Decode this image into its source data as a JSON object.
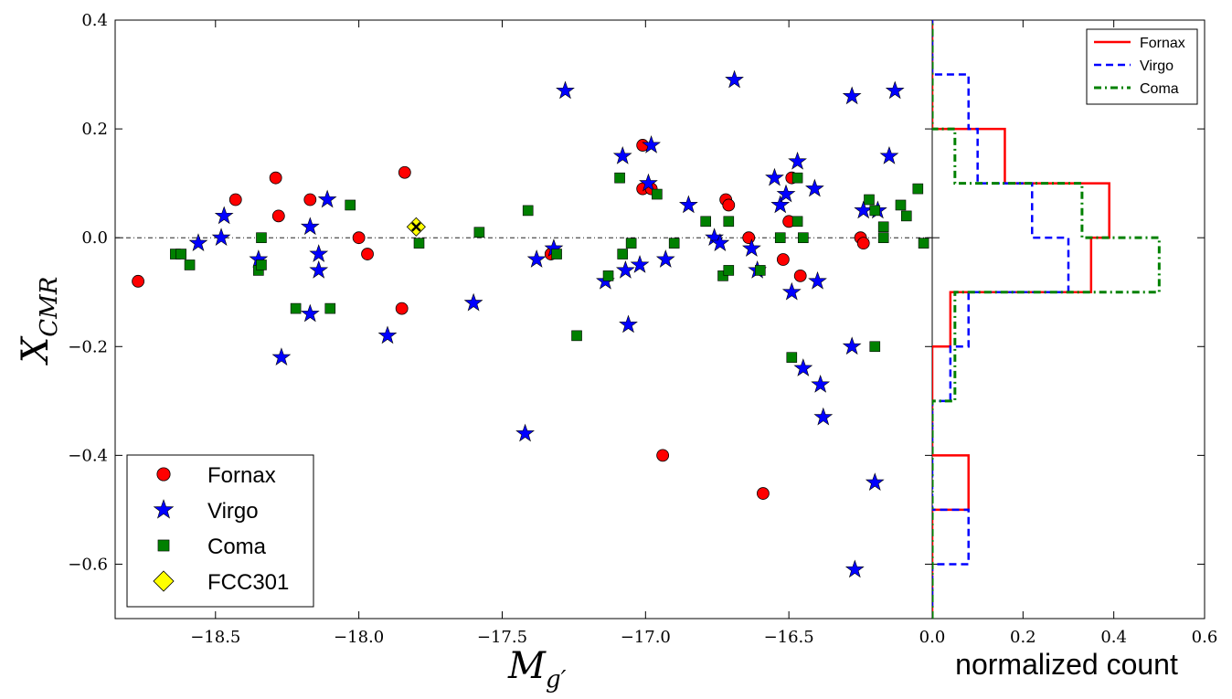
{
  "chart_data": [
    {
      "type": "scatter",
      "xlabel": "M",
      "xlabel_sub": "g′",
      "ylabel": "X",
      "ylabel_sub": "CMR",
      "xlim": [
        -18.85,
        -16.0
      ],
      "ylim": [
        -0.7,
        0.4
      ],
      "xticks": [
        -18.5,
        -18.0,
        -17.5,
        -17.0,
        -16.5
      ],
      "xtick_labels": [
        "−18.5",
        "−18.0",
        "−17.5",
        "−17.0",
        "−16.5"
      ],
      "yticks": [
        0.4,
        0.2,
        0.0,
        -0.2,
        -0.4,
        -0.6
      ],
      "ytick_labels": [
        "0.4",
        "0.2",
        "0.0",
        "−0.2",
        "−0.4",
        "−0.6"
      ],
      "reference_line_y": 0.0,
      "legend": {
        "position": "bottom-left",
        "entries": [
          "Fornax",
          "Virgo",
          "Coma",
          "FCC301"
        ]
      },
      "series": [
        {
          "name": "Fornax",
          "marker": "circle",
          "color": "#ff0000",
          "points": [
            [
              -18.77,
              -0.08
            ],
            [
              -18.43,
              0.07
            ],
            [
              -18.29,
              0.11
            ],
            [
              -18.28,
              0.04
            ],
            [
              -18.17,
              0.07
            ],
            [
              -18.0,
              0.0
            ],
            [
              -17.97,
              -0.03
            ],
            [
              -17.84,
              0.12
            ],
            [
              -17.85,
              -0.13
            ],
            [
              -17.33,
              -0.03
            ],
            [
              -17.01,
              0.17
            ],
            [
              -17.01,
              0.09
            ],
            [
              -16.98,
              0.09
            ],
            [
              -16.94,
              -0.4
            ],
            [
              -16.72,
              0.07
            ],
            [
              -16.71,
              0.06
            ],
            [
              -16.64,
              0.0
            ],
            [
              -16.59,
              -0.47
            ],
            [
              -16.52,
              -0.04
            ],
            [
              -16.5,
              0.03
            ],
            [
              -16.49,
              0.11
            ],
            [
              -16.46,
              -0.07
            ],
            [
              -16.25,
              0.0
            ],
            [
              -16.24,
              -0.01
            ]
          ]
        },
        {
          "name": "Virgo",
          "marker": "star",
          "color": "#0000ff",
          "points": [
            [
              -18.56,
              -0.01
            ],
            [
              -18.48,
              0.0
            ],
            [
              -18.47,
              0.04
            ],
            [
              -18.35,
              -0.04
            ],
            [
              -18.27,
              -0.22
            ],
            [
              -18.17,
              -0.14
            ],
            [
              -18.17,
              0.02
            ],
            [
              -18.14,
              -0.03
            ],
            [
              -18.14,
              -0.06
            ],
            [
              -18.11,
              0.07
            ],
            [
              -17.9,
              -0.18
            ],
            [
              -17.6,
              -0.12
            ],
            [
              -17.42,
              -0.36
            ],
            [
              -17.38,
              -0.04
            ],
            [
              -17.32,
              -0.02
            ],
            [
              -17.28,
              0.27
            ],
            [
              -17.14,
              -0.08
            ],
            [
              -17.08,
              0.15
            ],
            [
              -17.07,
              -0.06
            ],
            [
              -17.06,
              -0.16
            ],
            [
              -17.02,
              -0.05
            ],
            [
              -16.99,
              0.1
            ],
            [
              -16.98,
              0.17
            ],
            [
              -16.93,
              -0.04
            ],
            [
              -16.85,
              0.06
            ],
            [
              -16.76,
              0.0
            ],
            [
              -16.74,
              -0.01
            ],
            [
              -16.69,
              0.29
            ],
            [
              -16.63,
              -0.02
            ],
            [
              -16.61,
              -0.06
            ],
            [
              -16.55,
              0.11
            ],
            [
              -16.53,
              0.06
            ],
            [
              -16.51,
              0.08
            ],
            [
              -16.49,
              -0.1
            ],
            [
              -16.47,
              0.14
            ],
            [
              -16.45,
              -0.24
            ],
            [
              -16.41,
              0.09
            ],
            [
              -16.4,
              -0.08
            ],
            [
              -16.39,
              -0.27
            ],
            [
              -16.38,
              -0.33
            ],
            [
              -16.28,
              0.26
            ],
            [
              -16.28,
              -0.2
            ],
            [
              -16.27,
              -0.61
            ],
            [
              -16.24,
              0.05
            ],
            [
              -16.2,
              -0.45
            ],
            [
              -16.19,
              0.05
            ],
            [
              -16.15,
              0.15
            ],
            [
              -16.13,
              0.27
            ]
          ]
        },
        {
          "name": "Coma",
          "marker": "square",
          "color": "#008000",
          "points": [
            [
              -18.64,
              -0.03
            ],
            [
              -18.62,
              -0.03
            ],
            [
              -18.59,
              -0.05
            ],
            [
              -18.35,
              -0.06
            ],
            [
              -18.34,
              -0.05
            ],
            [
              -18.34,
              0.0
            ],
            [
              -18.22,
              -0.13
            ],
            [
              -18.1,
              -0.13
            ],
            [
              -18.03,
              0.06
            ],
            [
              -17.79,
              -0.01
            ],
            [
              -17.58,
              0.01
            ],
            [
              -17.41,
              0.05
            ],
            [
              -17.31,
              -0.03
            ],
            [
              -17.24,
              -0.18
            ],
            [
              -17.13,
              -0.07
            ],
            [
              -17.09,
              0.11
            ],
            [
              -17.08,
              -0.03
            ],
            [
              -17.05,
              -0.01
            ],
            [
              -16.96,
              0.08
            ],
            [
              -16.9,
              -0.01
            ],
            [
              -16.79,
              0.03
            ],
            [
              -16.73,
              -0.07
            ],
            [
              -16.71,
              0.03
            ],
            [
              -16.71,
              -0.06
            ],
            [
              -16.6,
              -0.06
            ],
            [
              -16.53,
              0.0
            ],
            [
              -16.49,
              -0.22
            ],
            [
              -16.47,
              0.11
            ],
            [
              -16.47,
              0.03
            ],
            [
              -16.45,
              0.0
            ],
            [
              -16.22,
              0.07
            ],
            [
              -16.2,
              0.05
            ],
            [
              -16.2,
              -0.2
            ],
            [
              -16.17,
              0.0
            ],
            [
              -16.17,
              0.02
            ],
            [
              -16.11,
              0.06
            ],
            [
              -16.09,
              0.04
            ],
            [
              -16.05,
              0.09
            ],
            [
              -16.03,
              -0.01
            ]
          ]
        },
        {
          "name": "FCC301",
          "marker": "diamond",
          "color": "#ffff00",
          "points": [
            [
              -17.8,
              0.02
            ]
          ]
        }
      ]
    },
    {
      "type": "step-histogram",
      "orientation": "horizontal",
      "xlabel": "normalized count",
      "xlim": [
        0.0,
        0.6
      ],
      "xticks": [
        0.0,
        0.2,
        0.4,
        0.6
      ],
      "xtick_labels": [
        "0.0",
        "0.2",
        "0.4",
        "0.6"
      ],
      "ylim": [
        -0.7,
        0.4
      ],
      "bin_edges": [
        -0.7,
        -0.6,
        -0.5,
        -0.4,
        -0.3,
        -0.2,
        -0.1,
        0.0,
        0.1,
        0.2,
        0.3,
        0.4
      ],
      "legend": {
        "position": "top-right",
        "entries": [
          "Fornax",
          "Virgo",
          "Coma"
        ]
      },
      "series": [
        {
          "name": "Fornax",
          "color": "#ff0000",
          "linestyle": "solid",
          "counts": [
            0.0,
            0.0,
            0.08,
            0.0,
            0.0,
            0.04,
            0.35,
            0.39,
            0.16,
            0.0,
            0.0
          ]
        },
        {
          "name": "Virgo",
          "color": "#0000ff",
          "linestyle": "dashed",
          "counts": [
            0.0,
            0.08,
            0.0,
            0.0,
            0.04,
            0.08,
            0.3,
            0.22,
            0.1,
            0.08,
            0.0
          ]
        },
        {
          "name": "Coma",
          "color": "#008000",
          "linestyle": "dashdot",
          "counts": [
            0.0,
            0.0,
            0.0,
            0.0,
            0.05,
            0.05,
            0.5,
            0.33,
            0.05,
            0.0,
            0.0
          ]
        }
      ]
    }
  ]
}
